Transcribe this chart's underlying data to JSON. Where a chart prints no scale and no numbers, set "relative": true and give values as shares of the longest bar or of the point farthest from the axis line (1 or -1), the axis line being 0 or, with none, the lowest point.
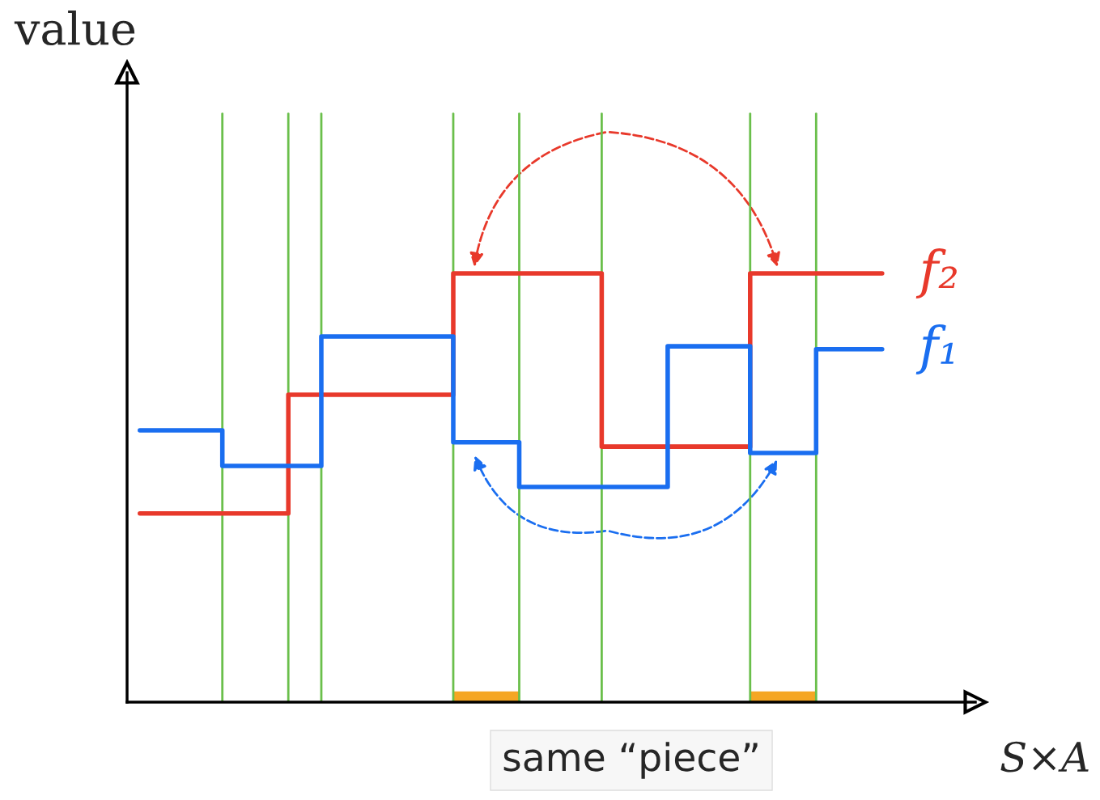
{
  "chart_data": {
    "type": "step",
    "relative": true,
    "xlabel": "S×A",
    "legend": false,
    "grid": "x",
    "categories": [
      null,
      null,
      null,
      null,
      null,
      null,
      null,
      null,
      null,
      null,
      null,
      null,
      null,
      null,
      null,
      null,
      null,
      null,
      null,
      null,
      null,
      null,
      null,
      null,
      null,
      null,
      null,
      null,
      null,
      null,
      null,
      null,
      null,
      null,
      null,
      null,
      null,
      null,
      null,
      null,
      null,
      null,
      null,
      null,
      null,
      null
    ],
    "series": [
      {
        "name": "f₂",
        "color": "#e8392b",
        "values": [
          0.44,
          0.44,
          0.44,
          0.44,
          0.44,
          0.44,
          0.44,
          0.44,
          0.44,
          0.717,
          0.717,
          0.717,
          0.717,
          0.717,
          0.717,
          0.717,
          0.717,
          0.717,
          0.717,
          1.0,
          1.0,
          1.0,
          1.0,
          1.0,
          1.0,
          1.0,
          1.0,
          1.0,
          0.596,
          0.596,
          0.596,
          0.596,
          0.596,
          0.596,
          0.596,
          0.596,
          0.596,
          1.0,
          1.0,
          1.0,
          1.0,
          1.0,
          1.0,
          1.0,
          1.0,
          1.0
        ]
      },
      {
        "name": "f₁",
        "color": "#1a6ef0",
        "values": [
          0.634,
          0.634,
          0.634,
          0.634,
          0.634,
          0.551,
          0.551,
          0.551,
          0.551,
          0.551,
          0.551,
          0.853,
          0.853,
          0.853,
          0.853,
          0.853,
          0.853,
          0.853,
          0.853,
          0.606,
          0.606,
          0.606,
          0.606,
          0.502,
          0.502,
          0.502,
          0.502,
          0.502,
          0.502,
          0.502,
          0.502,
          0.502,
          0.83,
          0.83,
          0.83,
          0.83,
          0.83,
          0.581,
          0.581,
          0.581,
          0.581,
          0.823,
          0.823,
          0.823,
          0.823,
          0.823
        ]
      }
    ],
    "annotations": [
      "value",
      "same “piece”"
    ]
  }
}
